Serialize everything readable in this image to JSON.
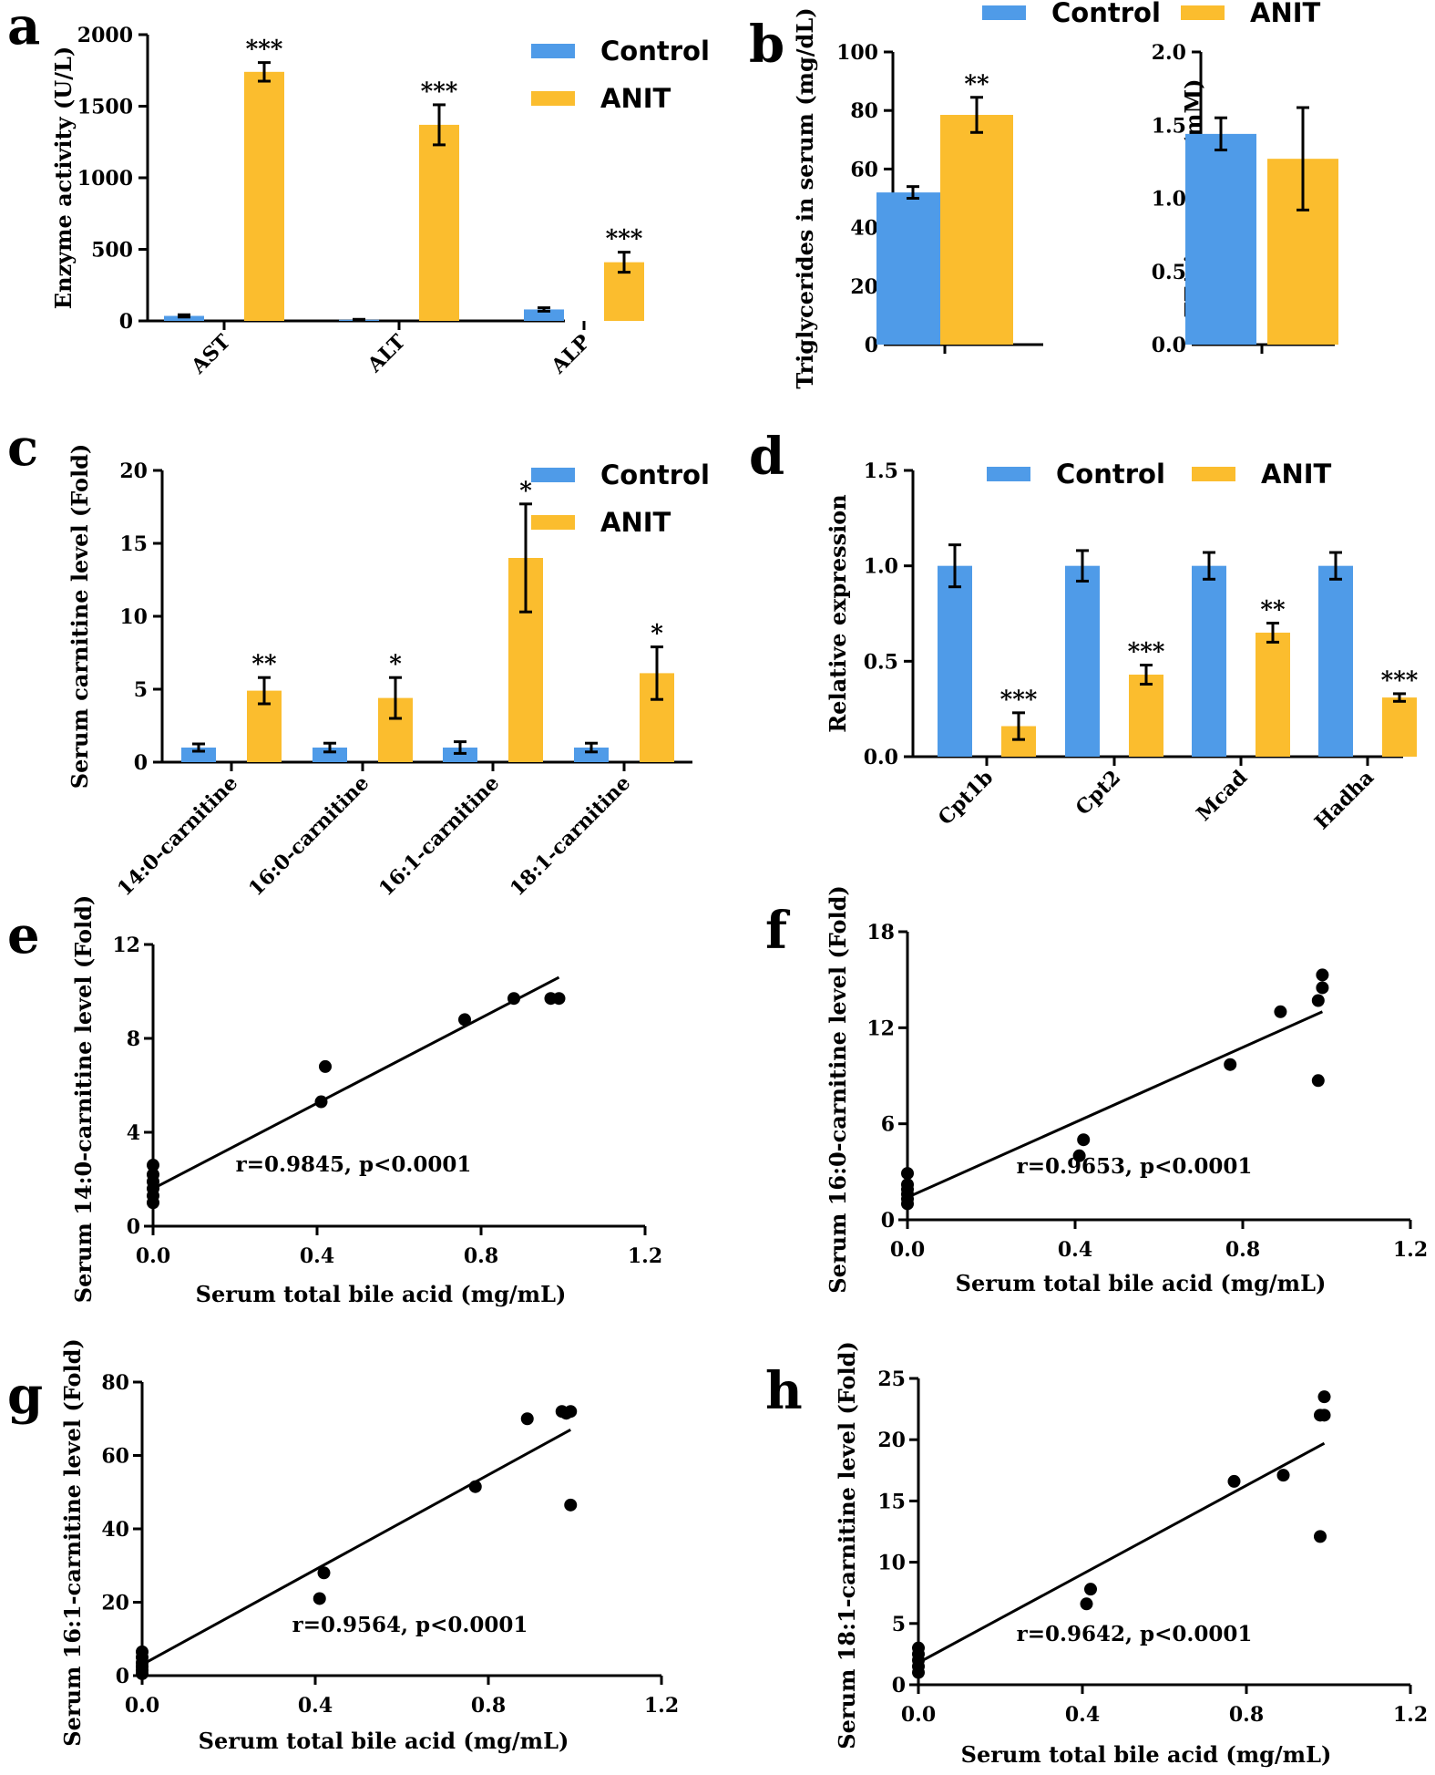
{
  "colors": {
    "control": "#4f9be8",
    "anit": "#fbbd2e",
    "ink": "#000000"
  },
  "chart_data": [
    {
      "panel": "a",
      "type": "bar",
      "categories": [
        "AST",
        "ALT",
        "ALP"
      ],
      "series": [
        {
          "name": "Control",
          "values": [
            35,
            8,
            80
          ],
          "errors": [
            8,
            3,
            12
          ]
        },
        {
          "name": "ANIT",
          "values": [
            1740,
            1370,
            410
          ],
          "errors": [
            65,
            140,
            70
          ]
        }
      ],
      "significance": [
        "***",
        "***",
        "***"
      ],
      "ylabel": "Enzyme activity (U/L)",
      "xlabel": "",
      "ylim": [
        0,
        2000
      ],
      "yticks": [
        "0",
        "500",
        "1000",
        "1500",
        "2000"
      ],
      "legend": [
        "Control",
        "ANIT"
      ],
      "legend_position": "top-right"
    },
    {
      "panel": "b",
      "type": "bar",
      "categories": [
        ""
      ],
      "series": [
        {
          "name": "Control",
          "values": [
            52
          ],
          "errors": [
            2
          ]
        },
        {
          "name": "ANIT",
          "values": [
            78.5
          ],
          "errors": [
            6
          ]
        }
      ],
      "significance": [
        "**"
      ],
      "ylabel": "Triglycerides in serum (mg/dL)",
      "xlabel": "",
      "ylim": [
        0,
        100
      ],
      "yticks": [
        "0",
        "20",
        "40",
        "60",
        "80",
        "100"
      ],
      "legend": [
        "Control",
        "ANIT"
      ],
      "legend_position": "top"
    },
    {
      "panel": "b2",
      "type": "bar",
      "categories": [
        ""
      ],
      "series": [
        {
          "name": "Control",
          "values": [
            1.44
          ],
          "errors": [
            0.11
          ]
        },
        {
          "name": "ANIT",
          "values": [
            1.27
          ],
          "errors": [
            0.35
          ]
        }
      ],
      "significance": [
        ""
      ],
      "ylabel": "FFA in serum (mM)",
      "xlabel": "",
      "ylim": [
        0,
        2.0
      ],
      "yticks": [
        "0.0",
        "0.5",
        "1.0",
        "1.5",
        "2.0"
      ]
    },
    {
      "panel": "c",
      "type": "bar",
      "categories": [
        "14:0-carnitine",
        "16:0-carnitine",
        "16:1-carnitine",
        "18:1-carnitine"
      ],
      "series": [
        {
          "name": "Control",
          "values": [
            1.0,
            1.0,
            1.0,
            1.0
          ],
          "errors": [
            0.25,
            0.3,
            0.4,
            0.3
          ]
        },
        {
          "name": "ANIT",
          "values": [
            4.9,
            4.4,
            14.0,
            6.1
          ],
          "errors": [
            0.9,
            1.4,
            3.7,
            1.8
          ]
        }
      ],
      "significance": [
        "**",
        "*",
        "*",
        "*"
      ],
      "ylabel": "Serum carnitine level (Fold)",
      "xlabel": "",
      "ylim": [
        0,
        20
      ],
      "yticks": [
        "0",
        "5",
        "10",
        "15",
        "20"
      ],
      "legend": [
        "Control",
        "ANIT"
      ],
      "legend_position": "top-right"
    },
    {
      "panel": "d",
      "type": "bar",
      "categories": [
        "Cpt1b",
        "Cpt2",
        "Mcad",
        "Hadha"
      ],
      "series": [
        {
          "name": "Control",
          "values": [
            1.0,
            1.0,
            1.0,
            1.0
          ],
          "errors": [
            0.11,
            0.08,
            0.07,
            0.07
          ]
        },
        {
          "name": "ANIT",
          "values": [
            0.16,
            0.43,
            0.65,
            0.31
          ],
          "errors": [
            0.07,
            0.05,
            0.05,
            0.02
          ]
        }
      ],
      "significance": [
        "***",
        "***",
        "**",
        "***"
      ],
      "ylabel": "Relative expression",
      "xlabel": "",
      "ylim": [
        0,
        1.5
      ],
      "yticks": [
        "0.0",
        "0.5",
        "1.0",
        "1.5"
      ],
      "legend": [
        "Control",
        "ANIT"
      ],
      "legend_position": "top"
    },
    {
      "panel": "e",
      "type": "scatter",
      "xlabel": "Serum total bile acid (mg/mL)",
      "ylabel": "Serum 14:0-carnitine level (Fold)",
      "xlim": [
        0,
        1.2
      ],
      "ylim": [
        0,
        12
      ],
      "xticks": [
        "0.0",
        "0.4",
        "0.8",
        "1.2"
      ],
      "yticks": [
        "0",
        "4",
        "8",
        "12"
      ],
      "points": [
        [
          0,
          1.0
        ],
        [
          0,
          1.3
        ],
        [
          0,
          1.6
        ],
        [
          0,
          1.9
        ],
        [
          0,
          2.2
        ],
        [
          0,
          2.6
        ],
        [
          0.41,
          5.3
        ],
        [
          0.42,
          6.8
        ],
        [
          0.76,
          8.8
        ],
        [
          0.88,
          9.7
        ],
        [
          0.97,
          9.7
        ],
        [
          0.99,
          9.7
        ]
      ],
      "fit": [
        [
          0,
          1.6
        ],
        [
          0.99,
          10.6
        ]
      ],
      "annotation": "r=0.9845, p<0.0001"
    },
    {
      "panel": "f",
      "type": "scatter",
      "xlabel": "Serum total bile acid (mg/mL)",
      "ylabel": "Serum 16:0-carnitine level (Fold)",
      "xlim": [
        0,
        1.2
      ],
      "ylim": [
        0,
        18
      ],
      "xticks": [
        "0.0",
        "0.4",
        "0.8",
        "1.2"
      ],
      "yticks": [
        "0",
        "6",
        "12",
        "18"
      ],
      "points": [
        [
          0,
          1.0
        ],
        [
          0,
          1.3
        ],
        [
          0,
          1.6
        ],
        [
          0,
          1.9
        ],
        [
          0,
          2.2
        ],
        [
          0,
          2.9
        ],
        [
          0.41,
          4.0
        ],
        [
          0.42,
          5.0
        ],
        [
          0.77,
          9.7
        ],
        [
          0.89,
          13.0
        ],
        [
          0.98,
          8.7
        ],
        [
          0.98,
          13.7
        ],
        [
          0.99,
          14.5
        ],
        [
          0.99,
          15.3
        ]
      ],
      "fit": [
        [
          0,
          1.4
        ],
        [
          0.99,
          13.0
        ]
      ],
      "annotation": "r=0.9653, p<0.0001"
    },
    {
      "panel": "g",
      "type": "scatter",
      "xlabel": "Serum total bile acid (mg/mL)",
      "ylabel": "Serum 16:1-carnitine level (Fold)",
      "xlim": [
        0,
        1.2
      ],
      "ylim": [
        0,
        80
      ],
      "xticks": [
        "0.0",
        "0.4",
        "0.8",
        "1.2"
      ],
      "yticks": [
        "0",
        "20",
        "40",
        "60",
        "80"
      ],
      "points": [
        [
          0,
          0.5
        ],
        [
          0,
          1.5
        ],
        [
          0,
          2.5
        ],
        [
          0,
          3.5
        ],
        [
          0,
          5
        ],
        [
          0,
          6.5
        ],
        [
          0.41,
          21
        ],
        [
          0.42,
          28
        ],
        [
          0.77,
          51.5
        ],
        [
          0.89,
          70
        ],
        [
          0.97,
          72
        ],
        [
          0.98,
          71.5
        ],
        [
          0.99,
          72
        ],
        [
          0.99,
          46.5
        ]
      ],
      "fit": [
        [
          0,
          3
        ],
        [
          0.99,
          67
        ]
      ],
      "annotation": "r=0.9564, p<0.0001"
    },
    {
      "panel": "h",
      "type": "scatter",
      "xlabel": "Serum total bile acid (mg/mL)",
      "ylabel": "Serum 18:1-carnitine level (Fold)",
      "xlim": [
        0,
        1.2
      ],
      "ylim": [
        0,
        25
      ],
      "xticks": [
        "0.0",
        "0.4",
        "0.8",
        "1.2"
      ],
      "yticks": [
        "0",
        "5",
        "10",
        "15",
        "20",
        "25"
      ],
      "points": [
        [
          0,
          1.0
        ],
        [
          0,
          1.5
        ],
        [
          0,
          2.0
        ],
        [
          0,
          2.5
        ],
        [
          0,
          3.0
        ],
        [
          0.41,
          6.6
        ],
        [
          0.42,
          7.8
        ],
        [
          0.77,
          16.6
        ],
        [
          0.89,
          17.1
        ],
        [
          0.98,
          12.1
        ],
        [
          0.98,
          22.0
        ],
        [
          0.99,
          22.0
        ],
        [
          0.99,
          23.5
        ]
      ],
      "fit": [
        [
          0,
          1.8
        ],
        [
          0.99,
          19.7
        ]
      ],
      "annotation": "r=0.9642, p<0.0001"
    }
  ],
  "panels": {
    "a": {
      "letter": "a"
    },
    "b": {
      "letter": "b"
    },
    "c": {
      "letter": "c"
    },
    "d": {
      "letter": "d"
    },
    "e": {
      "letter": "e"
    },
    "f": {
      "letter": "f"
    },
    "g": {
      "letter": "g"
    },
    "h": {
      "letter": "h"
    }
  }
}
